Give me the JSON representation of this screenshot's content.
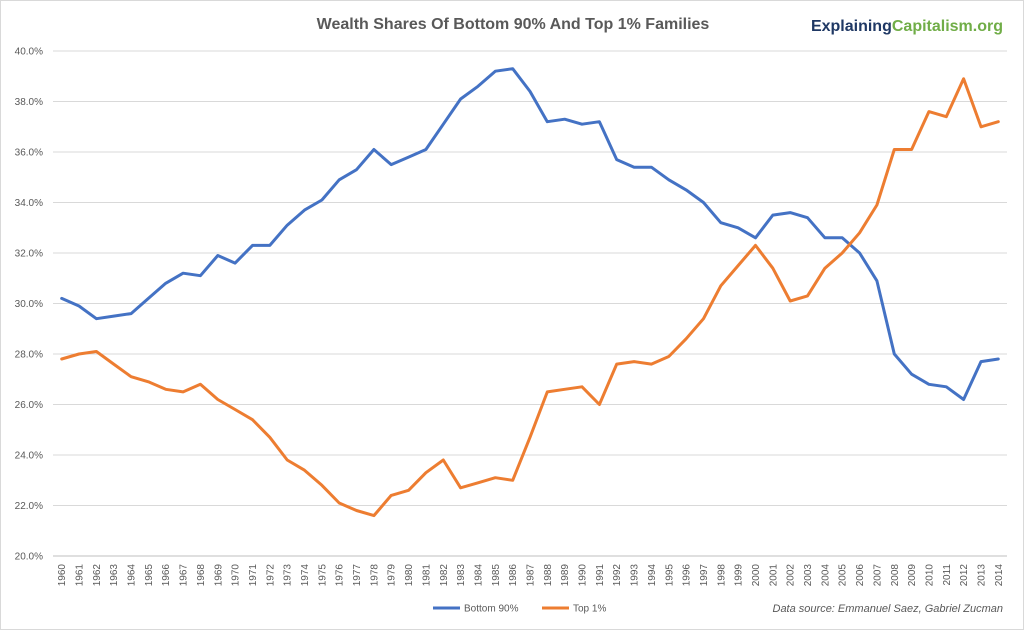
{
  "chart_data": {
    "type": "line",
    "title": "Wealth Shares Of Bottom 90% And Top 1% Families",
    "brand": {
      "part1": "Explaining",
      "part2": "Capitalism.org"
    },
    "source": "Data source: Emmanuel Saez, Gabriel Zucman",
    "ylim": [
      20,
      40
    ],
    "yticks": [
      "20.0%",
      "22.0%",
      "24.0%",
      "26.0%",
      "28.0%",
      "30.0%",
      "32.0%",
      "34.0%",
      "36.0%",
      "38.0%",
      "40.0%"
    ],
    "grid": true,
    "legend_position": "bottom",
    "x": [
      1960,
      1961,
      1962,
      1963,
      1964,
      1965,
      1966,
      1967,
      1968,
      1969,
      1970,
      1971,
      1972,
      1973,
      1974,
      1975,
      1976,
      1977,
      1978,
      1979,
      1980,
      1981,
      1982,
      1983,
      1984,
      1985,
      1986,
      1987,
      1988,
      1989,
      1990,
      1991,
      1992,
      1993,
      1994,
      1995,
      1996,
      1997,
      1998,
      1999,
      2000,
      2001,
      2002,
      2003,
      2004,
      2005,
      2006,
      2007,
      2008,
      2009,
      2010,
      2011,
      2012,
      2013,
      2014
    ],
    "series": [
      {
        "name": "Bottom 90%",
        "color": "#4472c4",
        "values": [
          30.2,
          29.9,
          29.4,
          29.5,
          29.6,
          30.2,
          30.8,
          31.2,
          31.1,
          31.9,
          31.6,
          32.3,
          32.3,
          33.1,
          33.7,
          34.1,
          34.9,
          35.3,
          36.1,
          35.5,
          35.8,
          36.1,
          37.1,
          38.1,
          38.6,
          39.2,
          39.3,
          38.4,
          37.2,
          37.3,
          37.1,
          37.2,
          35.7,
          35.4,
          35.4,
          34.9,
          34.5,
          34.0,
          33.2,
          33.0,
          32.6,
          33.5,
          33.6,
          33.4,
          32.6,
          32.6,
          32.0,
          30.9,
          28.0,
          27.2,
          26.8,
          26.7,
          26.2,
          27.7,
          27.8
        ]
      },
      {
        "name": "Top 1%",
        "color": "#ed7d31",
        "values": [
          27.8,
          28.0,
          28.1,
          27.6,
          27.1,
          26.9,
          26.6,
          26.5,
          26.8,
          26.2,
          25.8,
          25.4,
          24.7,
          23.8,
          23.4,
          22.8,
          22.1,
          21.8,
          21.6,
          22.4,
          22.6,
          23.3,
          23.8,
          22.7,
          22.9,
          23.1,
          23.0,
          24.7,
          26.5,
          26.6,
          26.7,
          26.0,
          27.6,
          27.7,
          27.6,
          27.9,
          28.6,
          29.4,
          30.7,
          31.5,
          32.3,
          31.4,
          30.1,
          30.3,
          31.4,
          32.0,
          32.8,
          33.9,
          36.1,
          36.1,
          37.6,
          37.4,
          38.9,
          37.0,
          37.2
        ]
      }
    ]
  }
}
